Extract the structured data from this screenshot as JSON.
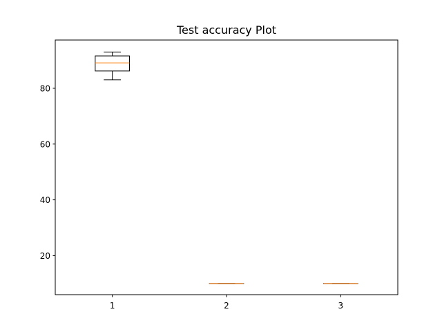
{
  "chart_data": {
    "type": "box",
    "title": "Test accuracy Plot",
    "xlabel": "",
    "ylabel": "",
    "categories": [
      "1",
      "2",
      "3"
    ],
    "ylim": [
      6,
      97.3
    ],
    "yticks": [
      20,
      40,
      60,
      80
    ],
    "ytick_labels": [
      "20",
      "40",
      "60",
      "80"
    ],
    "grid": false,
    "boxes": [
      {
        "category": "1",
        "whisker_low": 83,
        "q1": 86.2,
        "median": 89.1,
        "q3": 91.6,
        "whisker_high": 93
      },
      {
        "category": "2",
        "whisker_low": 10,
        "q1": 10,
        "median": 10,
        "q3": 10,
        "whisker_high": 10
      },
      {
        "category": "3",
        "whisker_low": 10,
        "q1": 10,
        "median": 10,
        "q3": 10,
        "whisker_high": 10
      }
    ],
    "colors": {
      "box": "#000000",
      "median": "#ff7f0e"
    }
  }
}
